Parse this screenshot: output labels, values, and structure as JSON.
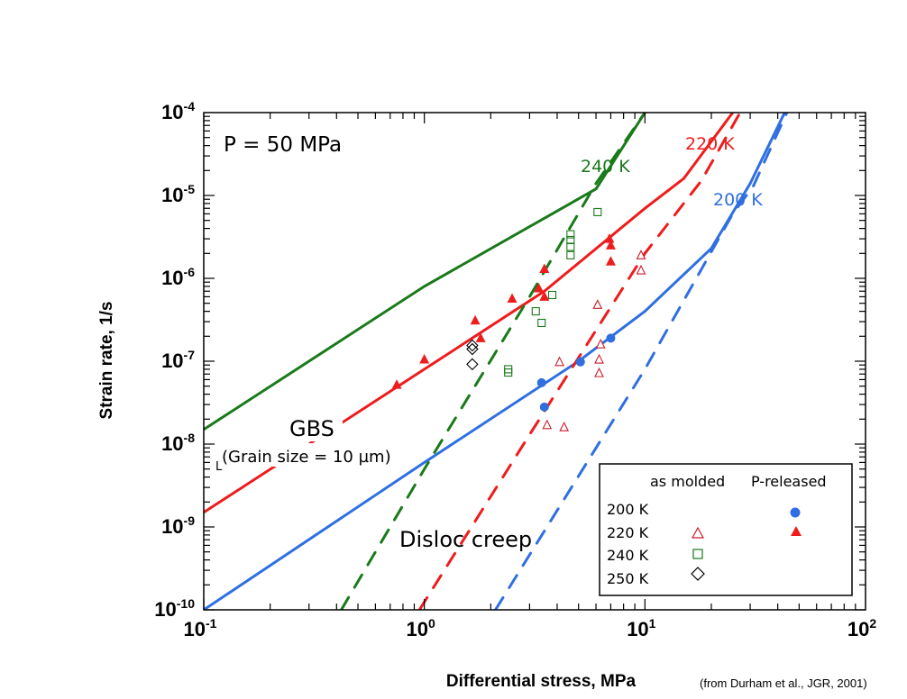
{
  "chart_data": {
    "type": "scatter",
    "title": "",
    "xlabel": "Differential stress, MPa",
    "ylabel": "Strain rate, 1/s",
    "xscale": "log",
    "yscale": "log",
    "xlim": [
      0.1,
      100
    ],
    "ylim": [
      1e-10,
      0.0001
    ],
    "grid": false,
    "x_ticks": [
      {
        "base": "10",
        "exp": "-1",
        "value": 0.1
      },
      {
        "base": "10",
        "exp": "0",
        "value": 1
      },
      {
        "base": "10",
        "exp": "1",
        "value": 10
      },
      {
        "base": "10",
        "exp": "2",
        "value": 100
      }
    ],
    "y_ticks": [
      {
        "base": "10",
        "exp": "-4",
        "value": 0.0001
      },
      {
        "base": "10",
        "exp": "-5",
        "value": 1e-05
      },
      {
        "base": "10",
        "exp": "-6",
        "value": 1e-06
      },
      {
        "base": "10",
        "exp": "-7",
        "value": 1e-07
      },
      {
        "base": "10",
        "exp": "-8",
        "value": 1e-08
      },
      {
        "base": "10",
        "exp": "-9",
        "value": 1e-09
      },
      {
        "base": "10",
        "exp": "-10",
        "value": 1e-10
      }
    ],
    "annotations": {
      "pressure": "P = 50 MPa",
      "gbs": "GBS",
      "grain_size": "(Grain size = 10 µm)",
      "disloc": "Disloc creep",
      "label_240": "240 K",
      "label_220": "220 K",
      "label_200": "200 K"
    },
    "credit": "(from Durham et al., JGR, 2001)",
    "colors": {
      "green": "#1a7a1a",
      "red": "#ee1c1c",
      "blue": "#2f6fe0"
    },
    "lines": [
      {
        "name": "240 K GBS",
        "color": "green",
        "style": "solid",
        "points": [
          [
            0.1,
            1.5e-08
          ],
          [
            1,
            8e-07
          ],
          [
            6,
            1.2e-05
          ],
          [
            10,
            0.0001
          ]
        ]
      },
      {
        "name": "220 K GBS",
        "color": "red",
        "style": "solid",
        "points": [
          [
            0.1,
            1.5e-09
          ],
          [
            1,
            8e-08
          ],
          [
            3.5,
            7e-07
          ],
          [
            10,
            7e-06
          ],
          [
            15,
            1.6e-05
          ],
          [
            25,
            0.0001
          ]
        ]
      },
      {
        "name": "200 K GBS",
        "color": "blue",
        "style": "solid",
        "points": [
          [
            0.1,
            1e-10
          ],
          [
            1,
            6e-09
          ],
          [
            5,
            1e-07
          ],
          [
            10,
            4e-07
          ],
          [
            20,
            2.3e-06
          ],
          [
            30,
            1.4e-05
          ],
          [
            43,
            0.0001
          ]
        ]
      },
      {
        "name": "240 K disloc",
        "color": "green",
        "style": "dashed",
        "points": [
          [
            0.42,
            1e-10
          ],
          [
            1,
            5e-09
          ],
          [
            3,
            6e-07
          ],
          [
            6,
            1.4e-05
          ],
          [
            10,
            0.0001
          ]
        ]
      },
      {
        "name": "220 K disloc",
        "color": "red",
        "style": "dashed",
        "points": [
          [
            0.95,
            1e-10
          ],
          [
            3,
            1.3e-08
          ],
          [
            10,
            2e-06
          ],
          [
            18,
            1.5e-05
          ],
          [
            27,
            0.0001
          ]
        ]
      },
      {
        "name": "200 K disloc",
        "color": "blue",
        "style": "dashed",
        "points": [
          [
            2.1,
            1e-10
          ],
          [
            10,
            8e-08
          ],
          [
            25,
            6e-06
          ],
          [
            31,
            1.3e-05
          ],
          [
            44,
            0.0001
          ]
        ]
      }
    ],
    "series": [
      {
        "name": "200 K P-released",
        "marker": "filled-circle",
        "color": "blue",
        "points": [
          [
            3.4,
            5.5e-08
          ],
          [
            3.5,
            2.8e-08
          ],
          [
            5.1,
            9.8e-08
          ],
          [
            7.0,
            1.9e-07
          ]
        ]
      },
      {
        "name": "220 K P-released",
        "marker": "filled-triangle",
        "color": "red",
        "points": [
          [
            0.75,
            5.2e-08
          ],
          [
            1.0,
            1.05e-07
          ],
          [
            1.7,
            3.1e-07
          ],
          [
            1.8,
            1.9e-07
          ],
          [
            2.5,
            5.7e-07
          ],
          [
            3.3,
            7.6e-07
          ],
          [
            3.5,
            6e-07
          ],
          [
            3.5,
            1.3e-06
          ],
          [
            6.9,
            3e-06
          ],
          [
            7.0,
            2.5e-06
          ],
          [
            7.0,
            1.6e-06
          ]
        ]
      },
      {
        "name": "220 K as molded",
        "marker": "open-triangle",
        "color": "red",
        "points": [
          [
            3.6,
            1.7e-08
          ],
          [
            4.3,
            1.6e-08
          ],
          [
            4.1,
            9.8e-08
          ],
          [
            6.1,
            4.8e-07
          ],
          [
            6.2,
            1.05e-07
          ],
          [
            6.3,
            1.6e-07
          ],
          [
            6.2,
            7.2e-08
          ],
          [
            9.6,
            1.9e-06
          ],
          [
            9.6,
            1.25e-06
          ]
        ]
      },
      {
        "name": "240 K as molded",
        "marker": "open-square",
        "color": "green",
        "points": [
          [
            2.4,
            8e-08
          ],
          [
            2.4,
            7.3e-08
          ],
          [
            3.2,
            4e-07
          ],
          [
            3.4,
            2.9e-07
          ],
          [
            3.8,
            6.3e-07
          ],
          [
            4.6,
            3.4e-06
          ],
          [
            4.6,
            2.9e-06
          ],
          [
            4.6,
            2.4e-06
          ],
          [
            4.6,
            1.9e-06
          ],
          [
            6.1,
            6.3e-06
          ]
        ]
      },
      {
        "name": "250 K as molded",
        "marker": "open-diamond",
        "color": "black",
        "points": [
          [
            1.65,
            1.55e-07
          ],
          [
            1.65,
            1.4e-07
          ],
          [
            1.65,
            9.2e-08
          ]
        ]
      }
    ],
    "legend": {
      "placement": "bottom-right",
      "col_headers": [
        "as molded",
        "P-released"
      ],
      "rows": [
        {
          "label": "200 K",
          "as_molded": null,
          "p_released": "filled-circle-blue"
        },
        {
          "label": "220 K",
          "as_molded": "open-triangle-red",
          "p_released": "filled-triangle-red"
        },
        {
          "label": "240 K",
          "as_molded": "open-square-green",
          "p_released": null
        },
        {
          "label": "250 K",
          "as_molded": "open-diamond-black",
          "p_released": null
        }
      ]
    }
  }
}
